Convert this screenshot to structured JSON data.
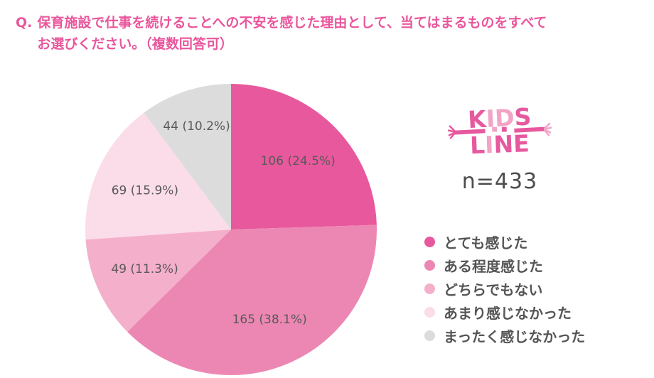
{
  "title": {
    "prefix": "Q.",
    "line1": "保育施設で仕事を続けることへの不安を感じた理由として、当てはまるものをすべて",
    "line2": "お選びください。（複数回答可）"
  },
  "brand": {
    "logo_line1": "KIDS",
    "logo_line2": "LINE",
    "sample_size": "n=433",
    "pink_dark": "#e7599e",
    "pink_light": "#f2a3c6"
  },
  "colors": {
    "accent_pink": "#e9569c",
    "chart_label_gray": "#595959",
    "legend_text_gray": "#555555"
  },
  "chart_data": {
    "type": "pie",
    "title": "",
    "total": 433,
    "sample_label": "n=433",
    "start_angle_deg": 0,
    "direction": "clockwise",
    "legend_position": "right",
    "label_format": "value (pct%)",
    "slices": [
      {
        "label": "とても感じた",
        "value": 106,
        "pct": 24.5,
        "color": "#e8589d"
      },
      {
        "label": "ある程度感じた",
        "value": 165,
        "pct": 38.1,
        "color": "#ec87b3"
      },
      {
        "label": "どちらでもない",
        "value": 49,
        "pct": 11.3,
        "color": "#f4afca"
      },
      {
        "label": "あまり感じなかった",
        "value": 69,
        "pct": 15.9,
        "color": "#fbdce9"
      },
      {
        "label": "まったく感じなかった",
        "value": 44,
        "pct": 10.2,
        "color": "#dcdcdc"
      }
    ]
  }
}
